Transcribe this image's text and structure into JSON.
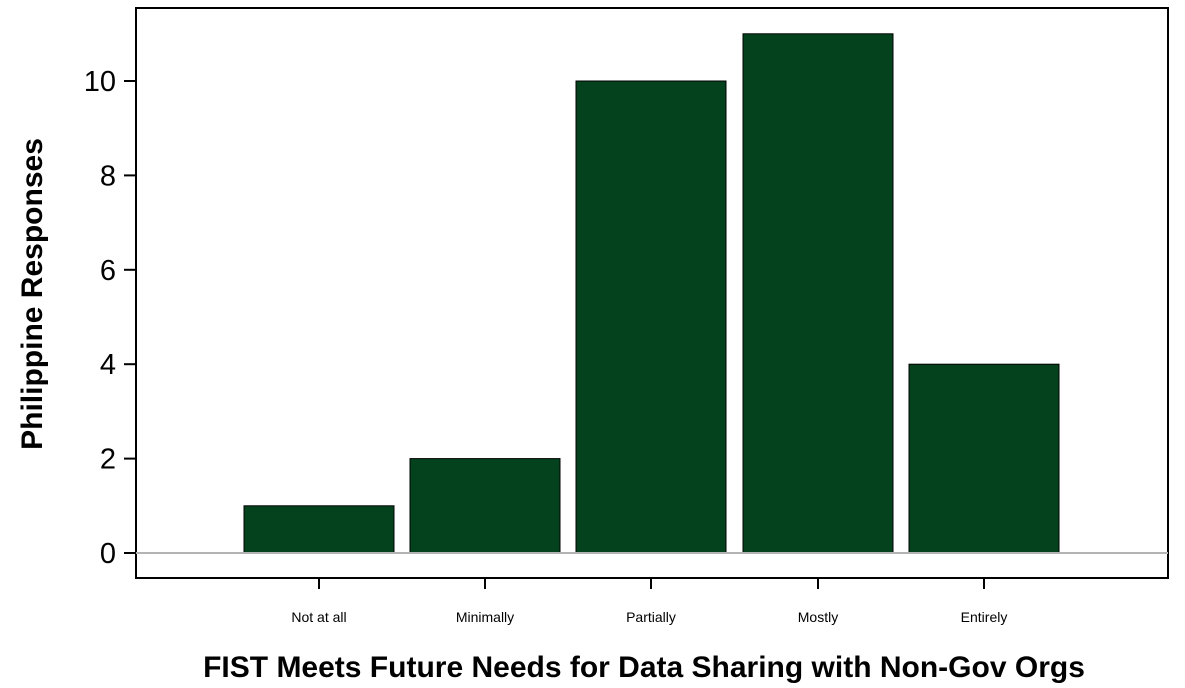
{
  "chart_data": {
    "type": "bar",
    "title": "",
    "xlabel": "FIST Meets Future Needs for Data Sharing with Non-Gov Orgs",
    "ylabel": "Philippine Responses",
    "categories": [
      "Not at all",
      "Minimally",
      "Partially",
      "Mostly",
      "Entirely"
    ],
    "values": [
      1,
      2,
      10,
      11,
      4
    ],
    "ylim": [
      0,
      11.5
    ],
    "yticks": [
      0,
      2,
      4,
      6,
      8,
      10
    ],
    "grid": false,
    "bar_color": "#03421c",
    "baseline_color": "#b3b3b3",
    "frame_color": "#000000"
  }
}
